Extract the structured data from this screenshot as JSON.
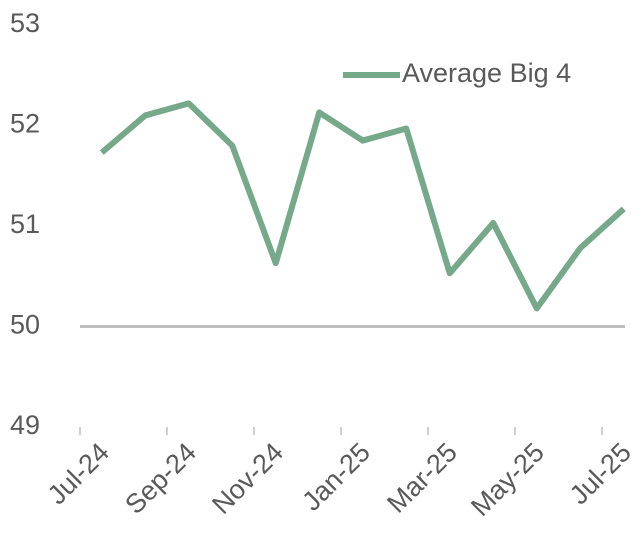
{
  "chart_data": {
    "type": "line",
    "categories": [
      "Jul-24",
      null,
      "Sep-24",
      null,
      "Nov-24",
      null,
      "Jan-25",
      null,
      "Mar-25",
      null,
      "May-25",
      null,
      "Jul-25"
    ],
    "series": [
      {
        "name": "Average Big 4",
        "color": "#76a98a",
        "values": [
          51.73,
          52.1,
          52.22,
          51.8,
          50.63,
          52.13,
          51.85,
          51.97,
          50.53,
          51.03,
          50.18,
          50.78,
          51.17
        ]
      }
    ],
    "ylim": [
      49,
      53
    ],
    "yticks": [
      49,
      50,
      51,
      52,
      53
    ],
    "baseline": 50,
    "legend": "top-right"
  }
}
